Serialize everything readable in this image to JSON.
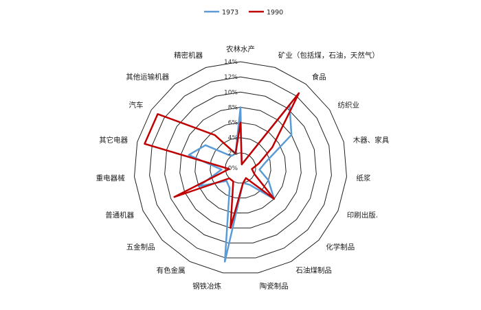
{
  "chart_data": {
    "type": "radar",
    "categories": [
      "农林水产",
      "矿业（包括煤，石油，天然气）",
      "食品",
      "纺织业",
      "木器、家具",
      "纸浆",
      "印刷出版.",
      "化学制品",
      "石油煤制品",
      "陶瓷制品",
      "钢铁冶炼",
      "有色金属",
      "五金制品",
      "普通机器",
      "重电器械",
      "其它电器",
      "汽车",
      "其他运输机器",
      "精密机器"
    ],
    "tick_labels": [
      "0%",
      "2%",
      "4%",
      "6%",
      "8%",
      "10%",
      "12%",
      "14%"
    ],
    "rlim": [
      0,
      14
    ],
    "grid": true,
    "legend_position": "top",
    "series": [
      {
        "name": "1973",
        "color": "#5b9bd5",
        "values": [
          8,
          0.5,
          10.5,
          8,
          3.5,
          2.5,
          4,
          6,
          2.5,
          2,
          12.5,
          3,
          2.5,
          6,
          2.5,
          7,
          5.5,
          2,
          2
        ]
      },
      {
        "name": "1990",
        "color": "#c00000",
        "values": [
          6,
          0.5,
          12.5,
          5,
          2.5,
          1.5,
          2,
          6,
          1.5,
          2,
          8,
          2,
          2,
          9.5,
          1.5,
          13,
          13,
          5.5,
          2
        ]
      }
    ]
  }
}
